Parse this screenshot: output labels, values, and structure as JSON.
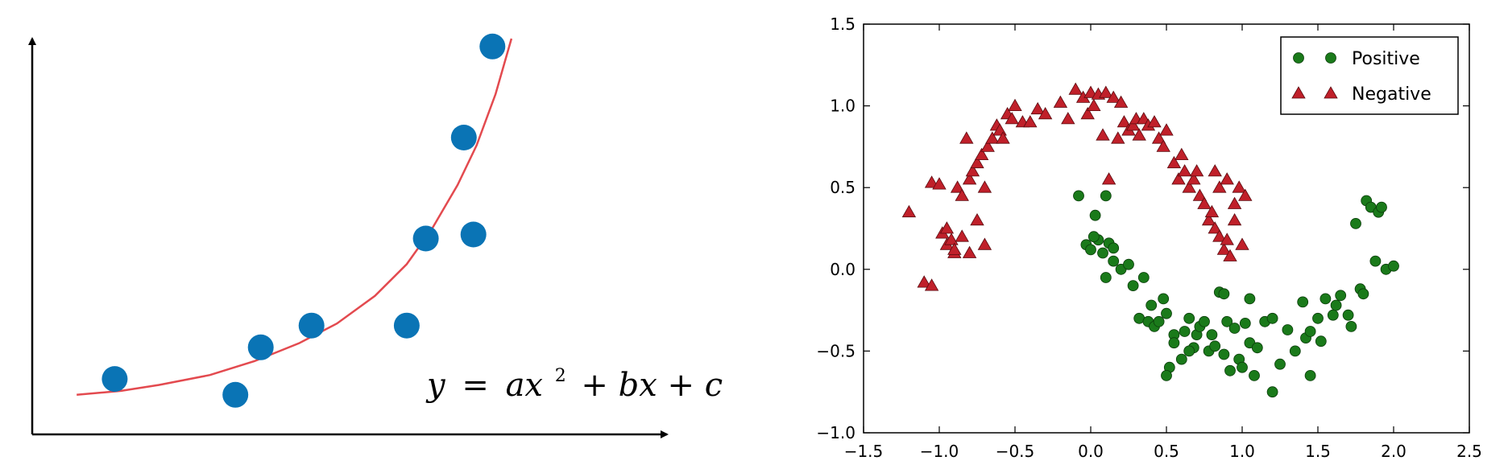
{
  "chart_data": [
    {
      "type": "scatter",
      "title": "",
      "xlabel": "",
      "ylabel": "",
      "axes_ticks": false,
      "x_range": [
        0,
        10
      ],
      "y_range": [
        0,
        10
      ],
      "points": {
        "color": "#0a74b5",
        "x": [
          1.3,
          3.2,
          3.6,
          4.4,
          5.9,
          6.2,
          6.8,
          6.95,
          7.25
        ],
        "y": [
          1.4,
          1.0,
          2.2,
          2.75,
          2.75,
          4.95,
          7.5,
          5.05,
          9.8
        ]
      },
      "curve": {
        "color": "#e34a4f",
        "x": [
          0.7,
          1.4,
          2.0,
          2.8,
          3.5,
          4.2,
          4.8,
          5.4,
          5.9,
          6.3,
          6.7,
          7.0,
          7.3,
          7.55
        ],
        "y": [
          1.0,
          1.1,
          1.25,
          1.5,
          1.85,
          2.3,
          2.8,
          3.5,
          4.3,
          5.2,
          6.3,
          7.3,
          8.6,
          10.0
        ]
      },
      "equation": {
        "lhs": "y",
        "eq": "=",
        "a": "ax",
        "exp": "2",
        "rest": "+ bx + c"
      }
    },
    {
      "type": "scatter",
      "title": "",
      "xlabel": "",
      "ylabel": "",
      "xlim": [
        -1.5,
        2.5
      ],
      "ylim": [
        -1.0,
        1.5
      ],
      "xticks": [
        "−1.5",
        "−1.0",
        "−0.5",
        "0.0",
        "0.5",
        "1.0",
        "1.5",
        "2.0",
        "2.5"
      ],
      "yticks": [
        "−1.0",
        "−0.5",
        "0.0",
        "0.5",
        "1.0",
        "1.5"
      ],
      "grid": false,
      "legend_position": "top-right",
      "series": [
        {
          "name": "Positive",
          "marker": "circle",
          "color": "#1a7a1a",
          "x": [
            -0.08,
            -0.03,
            0.0,
            0.03,
            0.05,
            0.08,
            0.1,
            0.12,
            0.15,
            0.2,
            0.25,
            0.28,
            0.32,
            0.35,
            0.38,
            0.4,
            0.42,
            0.45,
            0.48,
            0.5,
            0.52,
            0.55,
            0.6,
            0.62,
            0.65,
            0.68,
            0.7,
            0.72,
            0.75,
            0.78,
            0.8,
            0.82,
            0.85,
            0.88,
            0.9,
            0.92,
            0.95,
            0.98,
            1.0,
            1.02,
            1.05,
            1.08,
            1.1,
            1.15,
            1.2,
            1.25,
            1.3,
            1.35,
            1.4,
            1.42,
            1.45,
            1.5,
            1.52,
            1.55,
            1.6,
            1.62,
            1.65,
            1.7,
            1.72,
            1.75,
            1.78,
            1.8,
            1.82,
            1.85,
            1.88,
            1.9,
            1.92,
            1.95,
            2.0,
            0.02,
            0.1,
            0.15,
            0.5,
            0.55,
            0.65,
            1.45,
            0.88,
            1.2,
            1.05
          ],
          "y": [
            0.45,
            0.15,
            0.12,
            0.33,
            0.18,
            0.1,
            0.45,
            0.16,
            0.05,
            0.0,
            0.03,
            -0.1,
            -0.3,
            -0.05,
            -0.32,
            -0.22,
            -0.35,
            -0.32,
            -0.18,
            -0.27,
            -0.6,
            -0.4,
            -0.55,
            -0.38,
            -0.3,
            -0.48,
            -0.4,
            -0.35,
            -0.32,
            -0.5,
            -0.4,
            -0.47,
            -0.14,
            -0.52,
            -0.32,
            -0.62,
            -0.36,
            -0.55,
            -0.6,
            -0.33,
            -0.45,
            -0.65,
            -0.48,
            -0.32,
            -0.75,
            -0.58,
            -0.37,
            -0.5,
            -0.2,
            -0.42,
            -0.38,
            -0.3,
            -0.44,
            -0.18,
            -0.28,
            -0.22,
            -0.16,
            -0.28,
            -0.35,
            0.28,
            -0.12,
            -0.15,
            0.42,
            0.38,
            0.05,
            0.35,
            0.38,
            0.0,
            0.02,
            0.2,
            -0.05,
            0.13,
            -0.65,
            -0.45,
            -0.5,
            -0.65,
            -0.15,
            -0.3,
            -0.18
          ]
        },
        {
          "name": "Negative",
          "marker": "triangle",
          "color": "#c0202a",
          "x": [
            -1.2,
            -1.1,
            -1.05,
            -1.05,
            -1.0,
            -0.98,
            -0.95,
            -0.92,
            -0.9,
            -0.88,
            -0.85,
            -0.82,
            -0.8,
            -0.78,
            -0.75,
            -0.72,
            -0.7,
            -0.68,
            -0.65,
            -0.62,
            -0.6,
            -0.58,
            -0.55,
            -0.52,
            -0.5,
            -0.45,
            -0.4,
            -0.35,
            -0.3,
            -0.2,
            -0.15,
            -0.1,
            -0.05,
            -0.02,
            0.0,
            0.02,
            0.05,
            0.08,
            0.1,
            0.12,
            0.15,
            0.18,
            0.2,
            0.22,
            0.25,
            0.28,
            0.3,
            0.32,
            0.35,
            0.38,
            0.42,
            0.45,
            0.48,
            0.5,
            0.55,
            0.58,
            0.6,
            0.62,
            0.65,
            0.68,
            0.7,
            0.72,
            0.75,
            0.78,
            0.8,
            0.82,
            0.85,
            0.88,
            0.9,
            0.92,
            0.95,
            0.98,
            1.0,
            1.02,
            -0.95,
            -0.9,
            -0.85,
            -0.8,
            -0.75,
            -0.7,
            0.82,
            0.85,
            0.9,
            0.95
          ],
          "y": [
            0.35,
            -0.08,
            -0.1,
            0.53,
            0.52,
            0.22,
            0.15,
            0.18,
            0.1,
            0.5,
            0.45,
            0.8,
            0.55,
            0.6,
            0.65,
            0.7,
            0.5,
            0.75,
            0.8,
            0.88,
            0.85,
            0.8,
            0.95,
            0.92,
            1.0,
            0.9,
            0.9,
            0.98,
            0.95,
            1.02,
            0.92,
            1.1,
            1.05,
            0.95,
            1.08,
            1.0,
            1.07,
            0.82,
            1.08,
            0.55,
            1.05,
            0.8,
            1.02,
            0.9,
            0.85,
            0.88,
            0.92,
            0.82,
            0.92,
            0.88,
            0.9,
            0.8,
            0.75,
            0.85,
            0.65,
            0.55,
            0.7,
            0.6,
            0.5,
            0.55,
            0.6,
            0.45,
            0.4,
            0.3,
            0.35,
            0.25,
            0.2,
            0.12,
            0.18,
            0.08,
            0.3,
            0.5,
            0.15,
            0.45,
            0.25,
            0.12,
            0.2,
            0.1,
            0.3,
            0.15,
            0.6,
            0.5,
            0.55,
            0.4
          ]
        }
      ]
    }
  ]
}
